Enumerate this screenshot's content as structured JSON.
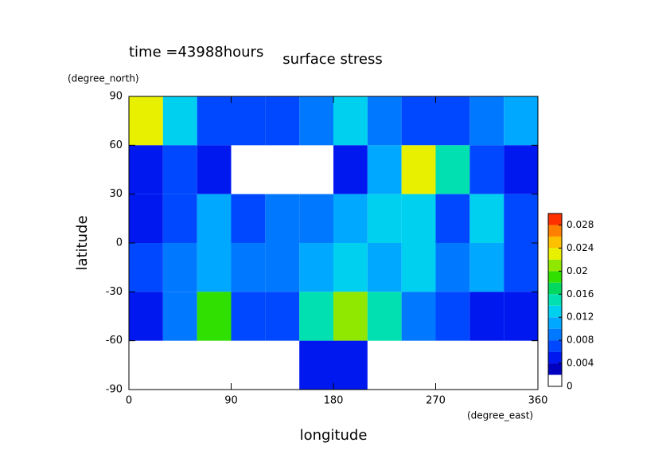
{
  "chart_data": {
    "type": "contour",
    "title": "surface stress",
    "subtitle": "time =43988hours",
    "x_label": "longitude",
    "x_unit": "(degree_east)",
    "y_label": "latitude",
    "y_unit": "(degree_north)",
    "x": [
      15,
      45,
      75,
      105,
      135,
      165,
      195,
      225,
      255,
      285,
      315,
      345
    ],
    "y": [
      75,
      45,
      15,
      -15,
      -45,
      -75
    ],
    "z": [
      [
        0.022,
        0.012,
        0.006,
        0.006,
        0.006,
        0.008,
        0.012,
        0.008,
        0.006,
        0.006,
        0.008,
        0.01
      ],
      [
        0.004,
        0.006,
        0.004,
        null,
        null,
        null,
        0.004,
        0.01,
        0.022,
        0.014,
        0.006,
        0.004
      ],
      [
        0.004,
        0.006,
        0.01,
        0.006,
        0.008,
        0.008,
        0.01,
        0.012,
        0.012,
        0.006,
        0.012,
        0.006
      ],
      [
        0.006,
        0.008,
        0.01,
        0.008,
        0.008,
        0.01,
        0.012,
        0.01,
        0.012,
        0.008,
        0.01,
        0.006
      ],
      [
        0.004,
        0.008,
        0.018,
        0.006,
        0.006,
        0.014,
        0.02,
        0.014,
        0.008,
        0.006,
        0.004,
        0.004
      ],
      [
        null,
        null,
        null,
        null,
        null,
        0.004,
        0.004,
        null,
        null,
        null,
        null,
        null
      ]
    ],
    "xlim": [
      0,
      360
    ],
    "xticks": [
      0,
      90,
      180,
      270,
      360
    ],
    "ylim": [
      -90,
      90
    ],
    "yticks": [
      -90,
      -60,
      -30,
      0,
      30,
      60,
      90
    ],
    "levels": [
      0,
      0.002,
      0.004,
      0.006,
      0.008,
      0.01,
      0.012,
      0.014,
      0.016,
      0.018,
      0.02,
      0.022,
      0.024,
      0.026,
      0.028,
      0.03
    ],
    "colors": [
      "#ffffff",
      "#0000c0",
      "#0018f0",
      "#0048ff",
      "#0078ff",
      "#00a8ff",
      "#00d0f0",
      "#00e0b0",
      "#00d860",
      "#30e000",
      "#90e800",
      "#e8f000",
      "#ffc000",
      "#ff8000",
      "#ff3000"
    ],
    "cbar_lim": [
      0,
      0.03
    ],
    "cbar_ticks": [
      0,
      0.004,
      0.008,
      0.012,
      0.016,
      0.02,
      0.024,
      0.028
    ]
  }
}
